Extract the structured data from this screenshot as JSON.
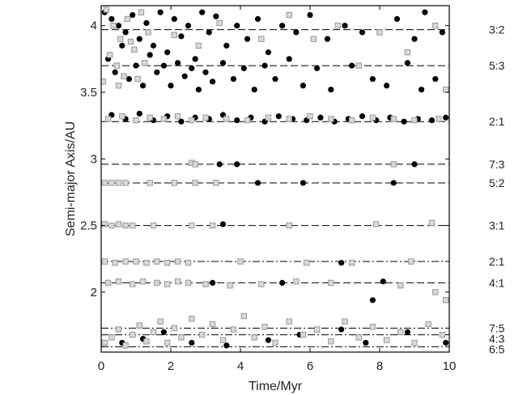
{
  "chart_data": {
    "type": "scatter",
    "xlabel": "Time/Myr",
    "ylabel": "Semi-major Axis/AU",
    "xlim": [
      0,
      10
    ],
    "ylim": [
      1.55,
      4.15
    ],
    "xticks": [
      0,
      2,
      4,
      6,
      8,
      10
    ],
    "yticks": [
      2,
      2.5,
      3,
      3.5,
      4
    ],
    "ytick_labels": [
      "2",
      "2.5",
      "3",
      "3.5",
      "4"
    ],
    "grid": false,
    "resonances": [
      {
        "label": "3:2",
        "a": 3.97,
        "style": "dashed"
      },
      {
        "label": "5:3",
        "a": 3.7,
        "style": "dashed"
      },
      {
        "label": "2:1",
        "a": 3.28,
        "style": "dashed"
      },
      {
        "label": "7:3",
        "a": 2.96,
        "style": "dashed"
      },
      {
        "label": "5:2",
        "a": 2.82,
        "style": "dashed"
      },
      {
        "label": "3:1",
        "a": 2.5,
        "style": "dashed"
      },
      {
        "label": "2:1",
        "a": 2.23,
        "style": "dashdot"
      },
      {
        "label": "4:1",
        "a": 2.07,
        "style": "dashed"
      },
      {
        "label": "7:5",
        "a": 1.73,
        "style": "dashdot"
      },
      {
        "label": "4:3",
        "a": 1.68,
        "style": "dashdot"
      },
      {
        "label": "6:5",
        "a": 1.59,
        "style": "dashdot"
      }
    ],
    "series": [
      {
        "marker": "filled-circle",
        "color": "#000000",
        "points": [
          [
            0.1,
            4.1
          ],
          [
            0.3,
            4.05
          ],
          [
            0.5,
            4.0
          ],
          [
            0.7,
            3.95
          ],
          [
            0.9,
            4.08
          ],
          [
            1.1,
            3.9
          ],
          [
            1.3,
            4.02
          ],
          [
            1.5,
            3.85
          ],
          [
            1.7,
            4.1
          ],
          [
            1.9,
            3.8
          ],
          [
            2.1,
            4.05
          ],
          [
            2.3,
            3.92
          ],
          [
            2.5,
            4.0
          ],
          [
            2.7,
            3.75
          ],
          [
            2.9,
            4.1
          ],
          [
            3.1,
            3.95
          ],
          [
            3.3,
            4.07
          ],
          [
            3.6,
            3.85
          ],
          [
            3.9,
            4.0
          ],
          [
            4.2,
            3.9
          ],
          [
            4.5,
            4.05
          ],
          [
            4.8,
            3.8
          ],
          [
            5.2,
            4.0
          ],
          [
            5.6,
            3.95
          ],
          [
            6.0,
            4.08
          ],
          [
            6.5,
            3.9
          ],
          [
            7.0,
            4.0
          ],
          [
            7.5,
            3.95
          ],
          [
            8.5,
            4.05
          ],
          [
            9.0,
            3.9
          ],
          [
            9.3,
            4.1
          ],
          [
            9.8,
            3.95
          ],
          [
            0.2,
            3.75
          ],
          [
            0.4,
            3.65
          ],
          [
            0.6,
            3.85
          ],
          [
            0.8,
            3.6
          ],
          [
            1.0,
            3.7
          ],
          [
            1.2,
            3.55
          ],
          [
            1.4,
            3.78
          ],
          [
            1.6,
            3.65
          ],
          [
            1.8,
            3.7
          ],
          [
            2.0,
            3.55
          ],
          [
            2.2,
            3.72
          ],
          [
            2.4,
            3.62
          ],
          [
            2.6,
            3.68
          ],
          [
            2.8,
            3.52
          ],
          [
            3.0,
            3.65
          ],
          [
            3.2,
            3.58
          ],
          [
            3.5,
            3.72
          ],
          [
            3.8,
            3.6
          ],
          [
            4.1,
            3.68
          ],
          [
            4.4,
            3.52
          ],
          [
            4.7,
            3.7
          ],
          [
            5.0,
            3.6
          ],
          [
            5.4,
            3.75
          ],
          [
            5.8,
            3.55
          ],
          [
            6.2,
            3.68
          ],
          [
            6.6,
            3.52
          ],
          [
            7.2,
            3.7
          ],
          [
            7.8,
            3.6
          ],
          [
            8.2,
            3.55
          ],
          [
            8.8,
            3.72
          ],
          [
            9.2,
            3.52
          ],
          [
            9.6,
            3.6
          ],
          [
            0.3,
            3.33
          ],
          [
            0.7,
            3.3
          ],
          [
            1.1,
            3.34
          ],
          [
            1.5,
            3.29
          ],
          [
            1.9,
            3.32
          ],
          [
            2.3,
            3.28
          ],
          [
            2.7,
            3.31
          ],
          [
            3.1,
            3.3
          ],
          [
            3.5,
            3.33
          ],
          [
            3.9,
            3.29
          ],
          [
            4.3,
            3.31
          ],
          [
            4.7,
            3.28
          ],
          [
            5.1,
            3.32
          ],
          [
            5.5,
            3.3
          ],
          [
            5.9,
            3.29
          ],
          [
            6.3,
            3.31
          ],
          [
            6.7,
            3.28
          ],
          [
            7.1,
            3.3
          ],
          [
            7.5,
            3.32
          ],
          [
            7.9,
            3.29
          ],
          [
            8.3,
            3.31
          ],
          [
            8.7,
            3.28
          ],
          [
            9.1,
            3.3
          ],
          [
            9.5,
            3.29
          ],
          [
            9.9,
            3.31
          ],
          [
            3.4,
            2.96
          ],
          [
            3.9,
            2.96
          ],
          [
            9.0,
            2.96
          ],
          [
            0.5,
            2.82
          ],
          [
            4.5,
            2.82
          ],
          [
            5.8,
            2.82
          ],
          [
            8.4,
            2.82
          ],
          [
            3.5,
            2.51
          ],
          [
            6.9,
            2.22
          ],
          [
            3.2,
            2.07
          ],
          [
            5.2,
            2.07
          ],
          [
            8.1,
            2.08
          ],
          [
            7.8,
            1.94
          ],
          [
            0.6,
            1.62
          ],
          [
            1.2,
            1.65
          ],
          [
            1.8,
            1.7
          ],
          [
            2.6,
            1.62
          ],
          [
            3.6,
            1.6
          ],
          [
            4.8,
            1.64
          ],
          [
            5.7,
            1.68
          ],
          [
            6.9,
            1.72
          ],
          [
            7.6,
            1.62
          ],
          [
            8.8,
            1.7
          ],
          [
            9.9,
            1.62
          ]
        ]
      },
      {
        "marker": "open-square",
        "color": "#999999",
        "points": [
          [
            0.15,
            4.12
          ],
          [
            0.35,
            4.0
          ],
          [
            0.55,
            3.9
          ],
          [
            0.75,
            4.05
          ],
          [
            0.95,
            3.82
          ],
          [
            1.15,
            4.1
          ],
          [
            1.35,
            3.95
          ],
          [
            0.25,
            3.78
          ],
          [
            0.45,
            3.7
          ],
          [
            0.65,
            3.62
          ],
          [
            0.85,
            3.88
          ],
          [
            1.05,
            3.6
          ],
          [
            1.25,
            3.72
          ],
          [
            0.05,
            3.58
          ],
          [
            0.5,
            3.55
          ],
          [
            2.1,
            3.93
          ],
          [
            2.8,
            3.85
          ],
          [
            3.4,
            4.02
          ],
          [
            4.6,
            3.9
          ],
          [
            5.4,
            4.08
          ],
          [
            6.1,
            3.9
          ],
          [
            6.8,
            4.0
          ],
          [
            7.4,
            3.7
          ],
          [
            8.0,
            3.95
          ],
          [
            8.8,
            3.8
          ],
          [
            9.6,
            4.0
          ],
          [
            9.9,
            3.52
          ],
          [
            0.2,
            3.3
          ],
          [
            0.6,
            3.32
          ],
          [
            1.0,
            3.29
          ],
          [
            1.4,
            3.31
          ],
          [
            1.8,
            3.3
          ],
          [
            2.2,
            3.32
          ],
          [
            2.6,
            3.29
          ],
          [
            3.0,
            3.31
          ],
          [
            3.6,
            3.3
          ],
          [
            4.2,
            3.29
          ],
          [
            4.8,
            3.31
          ],
          [
            5.4,
            3.3
          ],
          [
            6.0,
            3.32
          ],
          [
            6.6,
            3.3
          ],
          [
            7.2,
            3.29
          ],
          [
            7.8,
            3.31
          ],
          [
            8.4,
            3.3
          ],
          [
            9.0,
            3.29
          ],
          [
            9.7,
            3.3
          ],
          [
            2.6,
            2.97
          ],
          [
            2.7,
            2.96
          ],
          [
            8.4,
            2.96
          ],
          [
            0.1,
            2.82
          ],
          [
            0.3,
            2.82
          ],
          [
            0.5,
            2.82
          ],
          [
            0.7,
            2.82
          ],
          [
            1.4,
            2.82
          ],
          [
            2.1,
            2.82
          ],
          [
            2.7,
            2.82
          ],
          [
            3.3,
            2.82
          ],
          [
            0.1,
            2.51
          ],
          [
            0.3,
            2.5
          ],
          [
            0.5,
            2.51
          ],
          [
            0.7,
            2.5
          ],
          [
            0.9,
            2.5
          ],
          [
            1.5,
            2.5
          ],
          [
            2.6,
            2.5
          ],
          [
            3.2,
            2.5
          ],
          [
            5.4,
            2.5
          ],
          [
            7.9,
            2.51
          ],
          [
            9.5,
            2.52
          ],
          [
            0.1,
            2.23
          ],
          [
            0.4,
            2.22
          ],
          [
            0.7,
            2.23
          ],
          [
            1.0,
            2.23
          ],
          [
            1.3,
            2.22
          ],
          [
            1.6,
            2.23
          ],
          [
            1.9,
            2.22
          ],
          [
            2.2,
            2.23
          ],
          [
            2.5,
            2.22
          ],
          [
            4.0,
            2.23
          ],
          [
            5.9,
            2.22
          ],
          [
            7.2,
            2.22
          ],
          [
            8.9,
            2.23
          ],
          [
            0.2,
            2.07
          ],
          [
            0.5,
            2.08
          ],
          [
            0.9,
            2.06
          ],
          [
            1.2,
            2.08
          ],
          [
            1.6,
            2.07
          ],
          [
            1.9,
            2.06
          ],
          [
            2.2,
            2.08
          ],
          [
            2.5,
            2.07
          ],
          [
            3.0,
            2.06
          ],
          [
            3.7,
            2.05
          ],
          [
            4.6,
            2.06
          ],
          [
            5.6,
            2.08
          ],
          [
            6.6,
            2.07
          ],
          [
            8.6,
            2.05
          ],
          [
            9.6,
            2.0
          ],
          [
            9.9,
            1.94
          ],
          [
            0.1,
            1.62
          ],
          [
            0.3,
            1.66
          ],
          [
            0.5,
            1.72
          ],
          [
            0.7,
            1.6
          ],
          [
            0.9,
            1.68
          ],
          [
            1.1,
            1.75
          ],
          [
            1.3,
            1.63
          ],
          [
            1.5,
            1.7
          ],
          [
            1.7,
            1.78
          ],
          [
            1.9,
            1.62
          ],
          [
            2.1,
            1.73
          ],
          [
            2.3,
            1.66
          ],
          [
            2.6,
            1.8
          ],
          [
            2.9,
            1.68
          ],
          [
            3.2,
            1.76
          ],
          [
            3.5,
            1.64
          ],
          [
            3.8,
            1.72
          ],
          [
            4.1,
            1.82
          ],
          [
            4.4,
            1.66
          ],
          [
            4.7,
            1.74
          ],
          [
            5.0,
            1.62
          ],
          [
            5.4,
            1.78
          ],
          [
            5.8,
            1.68
          ],
          [
            6.2,
            1.72
          ],
          [
            6.6,
            1.63
          ],
          [
            7.0,
            1.78
          ],
          [
            7.4,
            1.66
          ],
          [
            7.8,
            1.74
          ],
          [
            8.2,
            1.64
          ],
          [
            8.6,
            1.7
          ],
          [
            9.0,
            1.62
          ],
          [
            9.4,
            1.76
          ],
          [
            9.8,
            1.68
          ]
        ]
      }
    ]
  }
}
